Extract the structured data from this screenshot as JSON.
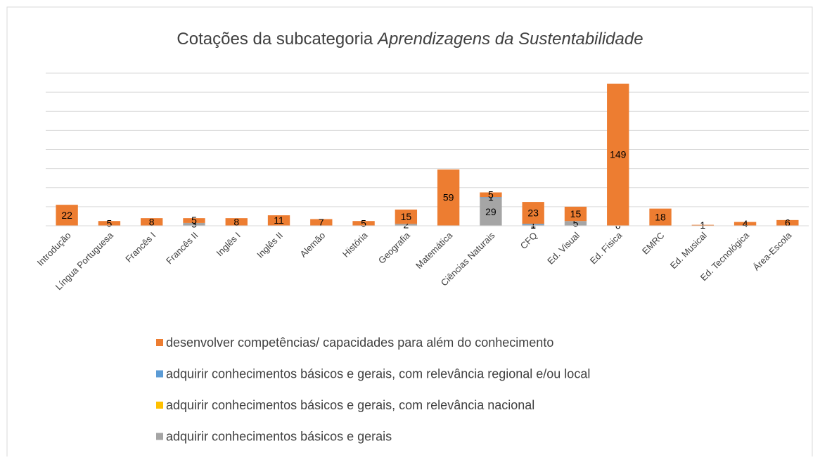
{
  "chart_data": {
    "type": "stacked_bar",
    "title": [
      "Cotações da subcategoria",
      "Aprendizagens da Sustentabilidade"
    ],
    "categories": [
      "Introdução",
      "Língua Portuguesa",
      "Francês I",
      "Francês II",
      "Inglês I",
      "Inglês II",
      "Alemão",
      "História",
      "Geografia",
      "Matemática",
      "Ciências Naturais",
      "CFQ",
      "Ed. Visual",
      "Ed. Física",
      "EMRC",
      "Ed. Musical",
      "Ed. Tecnológica",
      "Área-Escola"
    ],
    "series": [
      {
        "name": "desenvolver competências/ capacidades para além do conhecimento",
        "color": "#ED7D31",
        "values": [
          22,
          5,
          8,
          5,
          8,
          11,
          7,
          5,
          15,
          59,
          5,
          23,
          15,
          149,
          18,
          1,
          4,
          6
        ]
      },
      {
        "name": "adquirir conhecimentos básicos e gerais, com relevância regional e/ou local",
        "color": "#5B9BD5",
        "values": [
          null,
          null,
          null,
          null,
          null,
          null,
          null,
          null,
          null,
          null,
          1,
          1,
          null,
          null,
          null,
          null,
          null,
          null
        ]
      },
      {
        "name": "adquirir conhecimentos básicos e gerais, com relevância nacional",
        "color": "#FFC000",
        "values": [
          null,
          null,
          null,
          null,
          null,
          null,
          null,
          null,
          null,
          null,
          null,
          null,
          null,
          null,
          null,
          null,
          null,
          null
        ]
      },
      {
        "name": "adquirir conhecimentos básicos e gerais",
        "color": "#A5A5A5",
        "values": [
          null,
          null,
          null,
          3,
          null,
          null,
          null,
          null,
          2,
          null,
          29,
          1,
          5,
          0,
          null,
          null,
          null,
          null
        ]
      }
    ],
    "ylim": [
      0,
      160
    ],
    "yticks": [
      0,
      20,
      40,
      60,
      80,
      100,
      120,
      140,
      160
    ],
    "grid": true,
    "legend": "bottom"
  }
}
